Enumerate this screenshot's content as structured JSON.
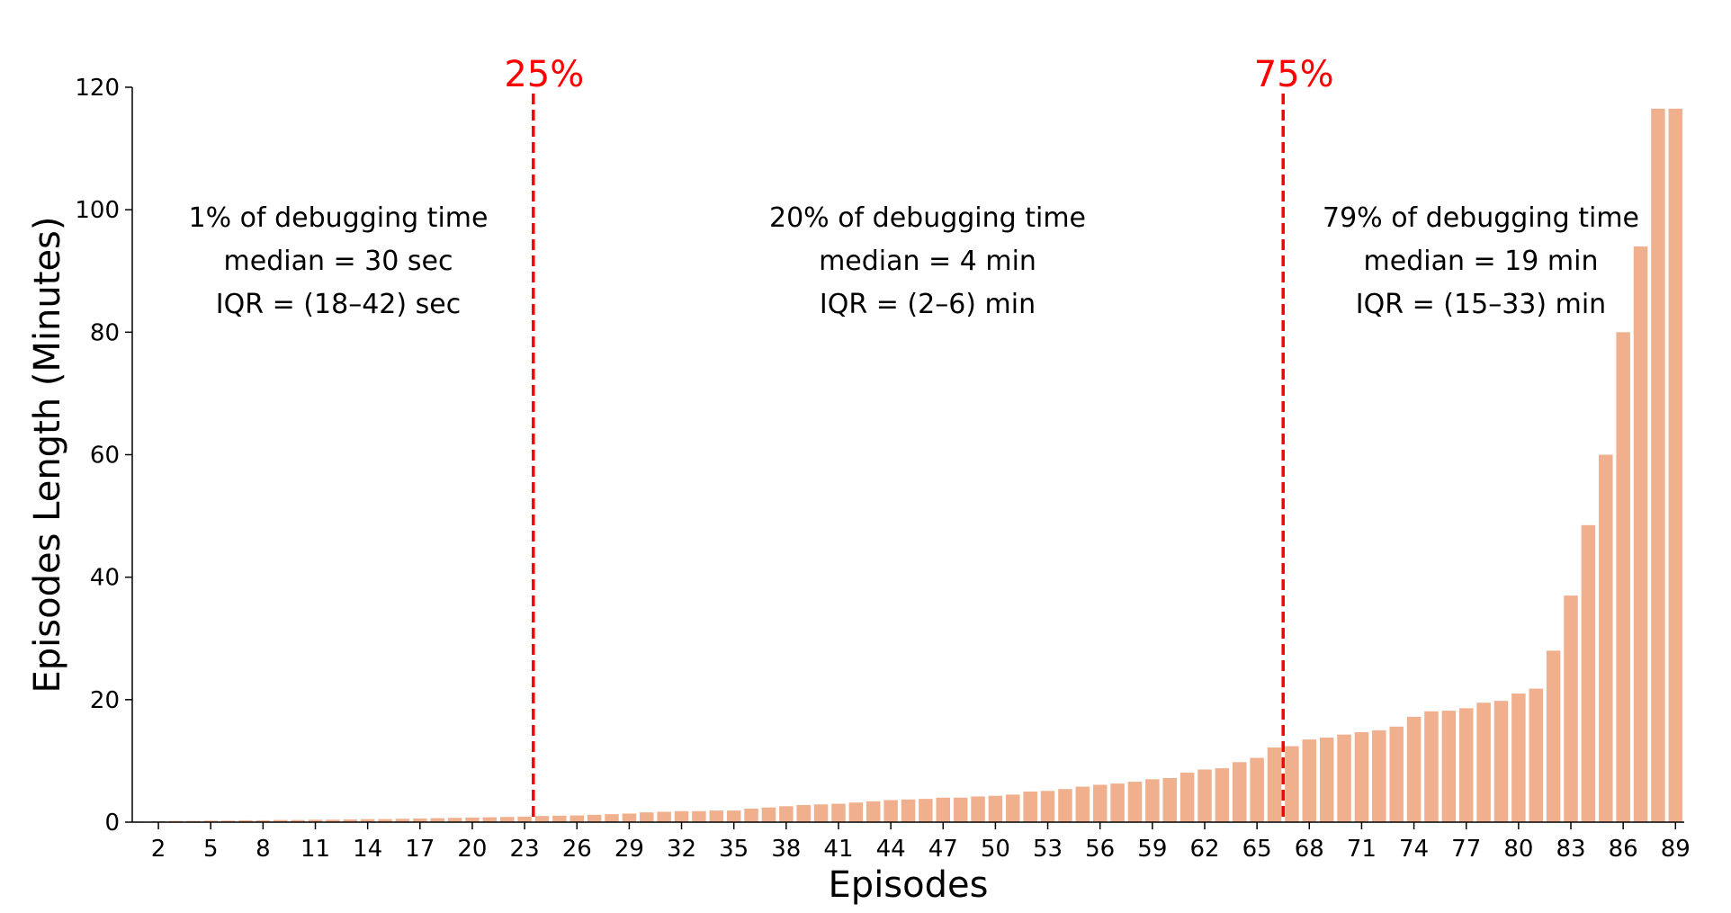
{
  "chart_data": {
    "type": "bar",
    "xlabel": "Episodes",
    "ylabel": "Episodes Length (Minutes)",
    "ylim": [
      0,
      120
    ],
    "yticks": [
      "0",
      "20",
      "40",
      "60",
      "80",
      "100",
      "120"
    ],
    "x_tick_labels": [
      "2",
      "5",
      "8",
      "11",
      "14",
      "17",
      "20",
      "23",
      "26",
      "29",
      "32",
      "35",
      "38",
      "41",
      "44",
      "47",
      "50",
      "53",
      "56",
      "59",
      "62",
      "65",
      "68",
      "71",
      "74",
      "77",
      "80",
      "83",
      "86",
      "89"
    ],
    "bar_color": "#f0b08e",
    "categories": [
      1,
      2,
      3,
      4,
      5,
      6,
      7,
      8,
      9,
      10,
      11,
      12,
      13,
      14,
      15,
      16,
      17,
      18,
      19,
      20,
      21,
      22,
      23,
      24,
      25,
      26,
      27,
      28,
      29,
      30,
      31,
      32,
      33,
      34,
      35,
      36,
      37,
      38,
      39,
      40,
      41,
      42,
      43,
      44,
      45,
      46,
      47,
      48,
      49,
      50,
      51,
      52,
      53,
      54,
      55,
      56,
      57,
      58,
      59,
      60,
      61,
      62,
      63,
      64,
      65,
      66,
      67,
      68,
      69,
      70,
      71,
      72,
      73,
      74,
      75,
      76,
      77,
      78,
      79,
      80,
      81,
      82,
      83,
      84,
      85,
      86,
      87,
      88,
      89
    ],
    "values": [
      0.1,
      0.15,
      0.2,
      0.2,
      0.25,
      0.25,
      0.3,
      0.3,
      0.35,
      0.35,
      0.4,
      0.4,
      0.45,
      0.5,
      0.5,
      0.55,
      0.6,
      0.65,
      0.7,
      0.75,
      0.8,
      0.85,
      0.9,
      1.0,
      1.05,
      1.1,
      1.2,
      1.3,
      1.4,
      1.6,
      1.7,
      1.8,
      1.8,
      1.9,
      1.9,
      2.2,
      2.4,
      2.6,
      2.8,
      2.9,
      3.0,
      3.2,
      3.4,
      3.6,
      3.7,
      3.8,
      4.0,
      4.0,
      4.2,
      4.3,
      4.5,
      5.0,
      5.1,
      5.4,
      5.8,
      6.1,
      6.3,
      6.6,
      7.0,
      7.2,
      8.1,
      8.6,
      8.8,
      9.8,
      10.5,
      12.2,
      12.4,
      13.5,
      13.8,
      14.3,
      14.7,
      15.0,
      15.6,
      17.2,
      18.1,
      18.2,
      18.6,
      19.5,
      19.8,
      21.0,
      21.8,
      28.0,
      37.0,
      48.5,
      60.0,
      80.0,
      94.0,
      116.5,
      116.5
    ],
    "markers": [
      {
        "label": "25%",
        "color": "#ff0000",
        "x": 23.5
      },
      {
        "label": "75%",
        "color": "#ff0000",
        "x": 66.5
      }
    ],
    "annotations": [
      {
        "lines": [
          "1% of debugging time",
          "median = 30 sec",
          "IQR = (18–42) sec"
        ]
      },
      {
        "lines": [
          "20% of debugging time",
          "median = 4 min",
          "IQR = (2–6) min"
        ]
      },
      {
        "lines": [
          "79% of debugging time",
          "median = 19 min",
          "IQR = (15–33) min"
        ]
      }
    ]
  }
}
